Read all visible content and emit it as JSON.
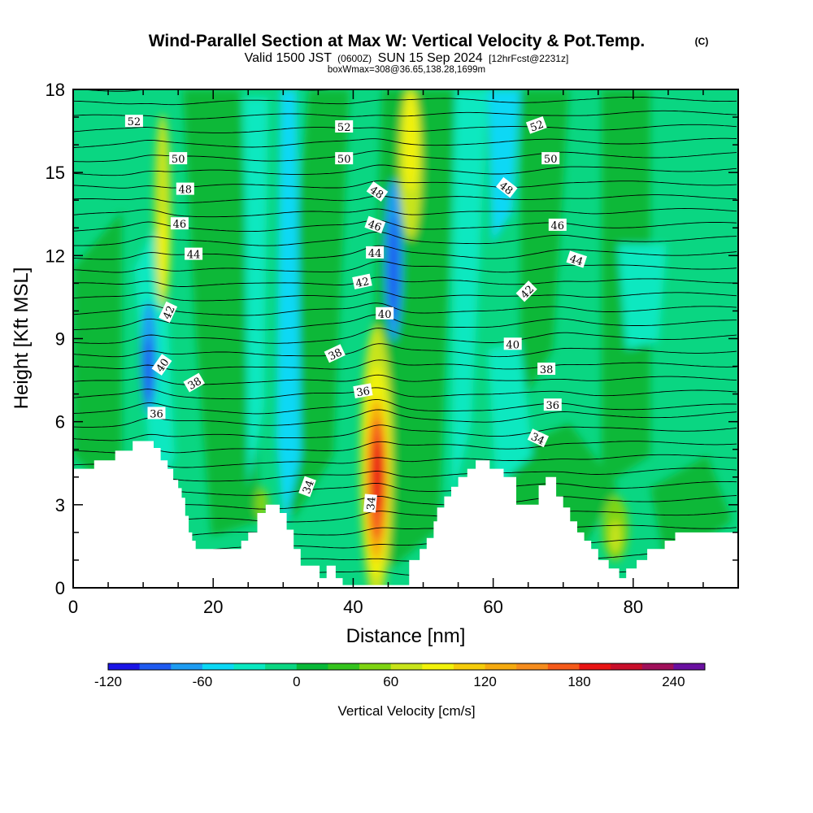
{
  "header": {
    "title": "Wind-Parallel Section at Max W: Vertical Velocity & Pot.Temp.",
    "title_mark": "(C)",
    "valid_prefix": "Valid 1500 JST",
    "valid_utc": "(0600Z)",
    "valid_date": "SUN 15 Sep 2024",
    "forecast": "[12hrFcst@2231z]",
    "boxwmax": "boxWmax=308@36.65,138.28,1699m"
  },
  "chart_data": {
    "type": "heatmap",
    "xlabel": "Distance [nm]",
    "ylabel": "Height [Kft MSL]",
    "xlim": [
      0,
      95
    ],
    "ylim": [
      0,
      18
    ],
    "x_ticks": [
      0,
      20,
      40,
      60,
      80
    ],
    "y_ticks": [
      0,
      3,
      6,
      9,
      12,
      15,
      18
    ],
    "colorbar": {
      "label": "Vertical Velocity [cm/s]",
      "min": -120,
      "step": 20,
      "tick_values": [
        -120,
        -60,
        0,
        60,
        120,
        180,
        240
      ],
      "colors": [
        "#1a14e6",
        "#1f5af0",
        "#1e9cf2",
        "#0ad8f5",
        "#08e8c0",
        "#0ad682",
        "#08b838",
        "#34c31e",
        "#7ed412",
        "#c8e41a",
        "#f2f20a",
        "#f5cc0a",
        "#f5aa10",
        "#f58c1e",
        "#f55a1a",
        "#e81414",
        "#c80e2a",
        "#a0105a",
        "#6a10a0"
      ]
    },
    "terrain_kft": [
      [
        0,
        4.3
      ],
      [
        3,
        4.3
      ],
      [
        3,
        4.6
      ],
      [
        6,
        4.6
      ],
      [
        6,
        4.95
      ],
      [
        8.5,
        4.95
      ],
      [
        8.5,
        5.3
      ],
      [
        11.5,
        5.3
      ],
      [
        11.5,
        5.05
      ],
      [
        12.5,
        5.05
      ],
      [
        12.5,
        4.6
      ],
      [
        13.5,
        4.6
      ],
      [
        13.5,
        4.3
      ],
      [
        14.3,
        4.3
      ],
      [
        14.3,
        3.9
      ],
      [
        15,
        3.9
      ],
      [
        15,
        3.6
      ],
      [
        15.5,
        3.6
      ],
      [
        15.5,
        3.25
      ],
      [
        16,
        3.25
      ],
      [
        16,
        2.6
      ],
      [
        16.5,
        2.6
      ],
      [
        16.5,
        2.0
      ],
      [
        17,
        2.0
      ],
      [
        17,
        1.7
      ],
      [
        17.5,
        1.7
      ],
      [
        17.5,
        1.4
      ],
      [
        24,
        1.4
      ],
      [
        24,
        1.7
      ],
      [
        25,
        1.7
      ],
      [
        25,
        2.0
      ],
      [
        26.3,
        2.0
      ],
      [
        26.3,
        2.7
      ],
      [
        27.5,
        2.7
      ],
      [
        27.5,
        3.0
      ],
      [
        29.5,
        3.0
      ],
      [
        29.5,
        2.7
      ],
      [
        30.5,
        2.7
      ],
      [
        30.5,
        2.1
      ],
      [
        31.5,
        2.1
      ],
      [
        31.5,
        1.4
      ],
      [
        32.5,
        1.4
      ],
      [
        32.5,
        0.8
      ],
      [
        35.2,
        0.8
      ],
      [
        35.2,
        0.35
      ],
      [
        36.2,
        0.35
      ],
      [
        36.2,
        0.8
      ],
      [
        37.5,
        0.8
      ],
      [
        37.5,
        0.35
      ],
      [
        38.5,
        0.35
      ],
      [
        38.5,
        0.1
      ],
      [
        48,
        0.1
      ],
      [
        48,
        1.0
      ],
      [
        49.5,
        1.0
      ],
      [
        49.5,
        1.4
      ],
      [
        50.5,
        1.4
      ],
      [
        50.5,
        1.8
      ],
      [
        51.5,
        1.8
      ],
      [
        51.5,
        2.4
      ],
      [
        52,
        2.4
      ],
      [
        52,
        2.9
      ],
      [
        53,
        2.9
      ],
      [
        53,
        3.3
      ],
      [
        54,
        3.3
      ],
      [
        54,
        3.65
      ],
      [
        55,
        3.65
      ],
      [
        55,
        4.0
      ],
      [
        56.3,
        4.0
      ],
      [
        56.3,
        4.3
      ],
      [
        57.5,
        4.3
      ],
      [
        57.5,
        4.6
      ],
      [
        59.5,
        4.6
      ],
      [
        59.5,
        4.3
      ],
      [
        61.5,
        4.3
      ],
      [
        61.5,
        4.0
      ],
      [
        63.3,
        4.0
      ],
      [
        63.3,
        3.0
      ],
      [
        66.5,
        3.0
      ],
      [
        66.5,
        3.7
      ],
      [
        67.5,
        3.7
      ],
      [
        67.5,
        4.0
      ],
      [
        69,
        4.0
      ],
      [
        69,
        3.3
      ],
      [
        70,
        3.3
      ],
      [
        70,
        2.9
      ],
      [
        71,
        2.9
      ],
      [
        71,
        2.4
      ],
      [
        72,
        2.4
      ],
      [
        72,
        2.0
      ],
      [
        73,
        2.0
      ],
      [
        73,
        1.7
      ],
      [
        74,
        1.7
      ],
      [
        74,
        1.4
      ],
      [
        75,
        1.4
      ],
      [
        75,
        1.0
      ],
      [
        76.5,
        1.0
      ],
      [
        76.5,
        0.7
      ],
      [
        78,
        0.7
      ],
      [
        78,
        0.35
      ],
      [
        79,
        0.35
      ],
      [
        79,
        0.7
      ],
      [
        80.5,
        0.7
      ],
      [
        80.5,
        1.0
      ],
      [
        82,
        1.0
      ],
      [
        82,
        1.4
      ],
      [
        84.5,
        1.4
      ],
      [
        84.5,
        1.7
      ],
      [
        86,
        1.7
      ],
      [
        86,
        2.0
      ],
      [
        95,
        2.0
      ]
    ],
    "contour_labels": [
      {
        "value": "52",
        "x": 8.7,
        "y": 16.85,
        "angle": 0
      },
      {
        "value": "52",
        "x": 38.7,
        "y": 16.65,
        "angle": 0
      },
      {
        "value": "52",
        "x": 66.2,
        "y": 16.7,
        "angle": -20
      },
      {
        "value": "50",
        "x": 15,
        "y": 15.5,
        "angle": 0
      },
      {
        "value": "50",
        "x": 38.7,
        "y": 15.5,
        "angle": 0
      },
      {
        "value": "50",
        "x": 68.2,
        "y": 15.5,
        "angle": 0
      },
      {
        "value": "48",
        "x": 16,
        "y": 14.4,
        "angle": 0
      },
      {
        "value": "48",
        "x": 43.4,
        "y": 14.3,
        "angle": 35
      },
      {
        "value": "48",
        "x": 61.9,
        "y": 14.45,
        "angle": 38
      },
      {
        "value": "46",
        "x": 15.2,
        "y": 13.15,
        "angle": 0
      },
      {
        "value": "46",
        "x": 43.1,
        "y": 13.1,
        "angle": 20
      },
      {
        "value": "46",
        "x": 69.2,
        "y": 13.1,
        "angle": 0
      },
      {
        "value": "44",
        "x": 17.2,
        "y": 12.05,
        "angle": 0
      },
      {
        "value": "44",
        "x": 43.1,
        "y": 12.1,
        "angle": 0
      },
      {
        "value": "44",
        "x": 71.9,
        "y": 11.85,
        "angle": 18
      },
      {
        "value": "42",
        "x": 13.6,
        "y": 9.95,
        "angle": -65
      },
      {
        "value": "42",
        "x": 41.3,
        "y": 11.05,
        "angle": -12
      },
      {
        "value": "42",
        "x": 64.8,
        "y": 10.7,
        "angle": -45
      },
      {
        "value": "40",
        "x": 12.7,
        "y": 8.05,
        "angle": -55
      },
      {
        "value": "40",
        "x": 44.5,
        "y": 9.9,
        "angle": 0
      },
      {
        "value": "40",
        "x": 62.8,
        "y": 8.8,
        "angle": 0
      },
      {
        "value": "38",
        "x": 17.3,
        "y": 7.4,
        "angle": -30
      },
      {
        "value": "38",
        "x": 37.4,
        "y": 8.45,
        "angle": -25
      },
      {
        "value": "38",
        "x": 67.6,
        "y": 7.9,
        "angle": 0
      },
      {
        "value": "36",
        "x": 11.9,
        "y": 6.3,
        "angle": 0
      },
      {
        "value": "36",
        "x": 41.4,
        "y": 7.1,
        "angle": -10
      },
      {
        "value": "36",
        "x": 68.5,
        "y": 6.6,
        "angle": 0
      },
      {
        "value": "34",
        "x": 33.5,
        "y": 3.65,
        "angle": -70
      },
      {
        "value": "34",
        "x": 42.5,
        "y": 3.05,
        "angle": -85
      },
      {
        "value": "34",
        "x": 66.4,
        "y": 5.4,
        "angle": 25
      }
    ]
  }
}
